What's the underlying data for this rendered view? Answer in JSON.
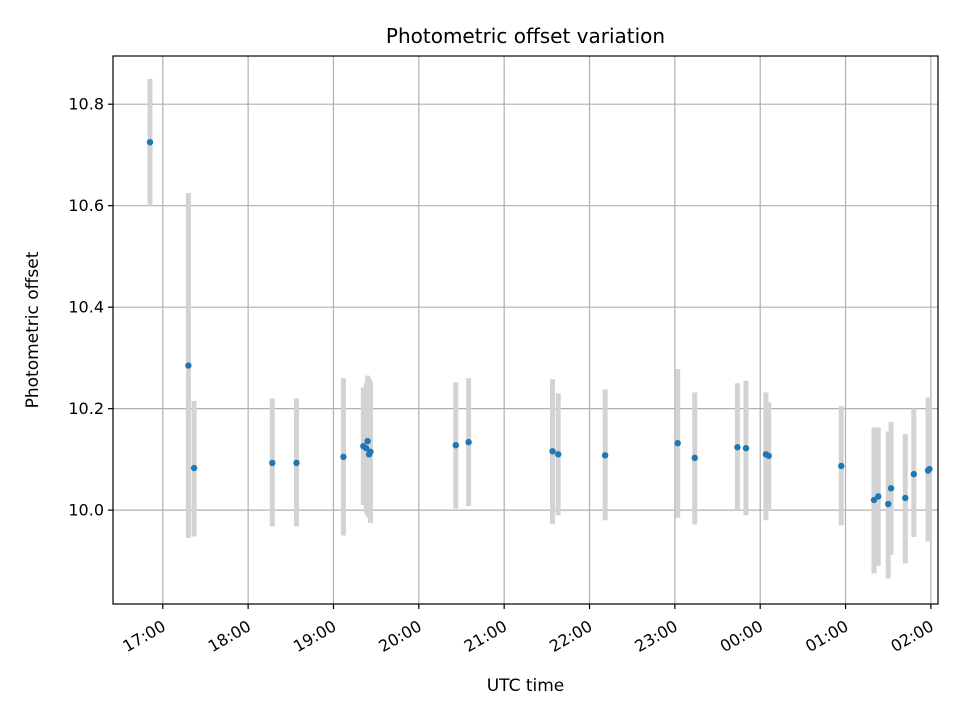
{
  "chart_data": {
    "type": "scatter",
    "title": "Photometric offset variation",
    "xlabel": "UTC time",
    "ylabel": "Photometric offset",
    "xlim": [
      "16:25",
      "02:05"
    ],
    "ylim": [
      9.815,
      10.895
    ],
    "grid": true,
    "colors": {
      "point": "#1f77b4",
      "errorbar": "#d3d3d3",
      "grid": "#b0b0b0"
    },
    "x_ticks": [
      "17:00",
      "18:00",
      "19:00",
      "20:00",
      "21:00",
      "22:00",
      "23:00",
      "00:00",
      "01:00",
      "02:00"
    ],
    "y_ticks": [
      "10.0",
      "10.2",
      "10.4",
      "10.6",
      "10.8"
    ],
    "points": [
      {
        "t": "16:51",
        "y": 10.725,
        "lo": 10.6,
        "hi": 10.85
      },
      {
        "t": "17:18",
        "y": 10.285,
        "lo": 9.945,
        "hi": 10.625
      },
      {
        "t": "17:22",
        "y": 10.083,
        "lo": 9.948,
        "hi": 10.215
      },
      {
        "t": "18:17",
        "y": 10.093,
        "lo": 9.968,
        "hi": 10.22
      },
      {
        "t": "18:34",
        "y": 10.093,
        "lo": 9.968,
        "hi": 10.22
      },
      {
        "t": "19:07",
        "y": 10.105,
        "lo": 9.95,
        "hi": 10.26
      },
      {
        "t": "19:21",
        "y": 10.126,
        "lo": 10.01,
        "hi": 10.242
      },
      {
        "t": "19:23",
        "y": 10.122,
        "lo": 9.995,
        "hi": 10.25
      },
      {
        "t": "19:24",
        "y": 10.136,
        "lo": 9.99,
        "hi": 10.265
      },
      {
        "t": "19:25",
        "y": 10.11,
        "lo": 9.985,
        "hi": 10.26
      },
      {
        "t": "19:26",
        "y": 10.115,
        "lo": 9.975,
        "hi": 10.255
      },
      {
        "t": "20:26",
        "y": 10.128,
        "lo": 10.003,
        "hi": 10.252
      },
      {
        "t": "20:35",
        "y": 10.134,
        "lo": 10.008,
        "hi": 10.26
      },
      {
        "t": "21:34",
        "y": 10.116,
        "lo": 9.973,
        "hi": 10.258
      },
      {
        "t": "21:38",
        "y": 10.11,
        "lo": 9.99,
        "hi": 10.23
      },
      {
        "t": "22:11",
        "y": 10.108,
        "lo": 9.98,
        "hi": 10.238
      },
      {
        "t": "23:02",
        "y": 10.132,
        "lo": 9.985,
        "hi": 10.278
      },
      {
        "t": "23:14",
        "y": 10.103,
        "lo": 9.972,
        "hi": 10.232
      },
      {
        "t": "23:44",
        "y": 10.124,
        "lo": 10.0,
        "hi": 10.25
      },
      {
        "t": "23:50",
        "y": 10.122,
        "lo": 9.99,
        "hi": 10.255
      },
      {
        "t": "00:04",
        "y": 10.11,
        "lo": 9.98,
        "hi": 10.232
      },
      {
        "t": "00:06",
        "y": 10.107,
        "lo": 10.0,
        "hi": 10.212
      },
      {
        "t": "00:57",
        "y": 10.087,
        "lo": 9.97,
        "hi": 10.205
      },
      {
        "t": "01:20",
        "y": 10.02,
        "lo": 9.875,
        "hi": 10.163
      },
      {
        "t": "01:23",
        "y": 10.027,
        "lo": 9.89,
        "hi": 10.163
      },
      {
        "t": "01:30",
        "y": 10.012,
        "lo": 9.865,
        "hi": 10.155
      },
      {
        "t": "01:32",
        "y": 10.043,
        "lo": 9.912,
        "hi": 10.174
      },
      {
        "t": "01:42",
        "y": 10.024,
        "lo": 9.895,
        "hi": 10.15
      },
      {
        "t": "01:48",
        "y": 10.071,
        "lo": 9.947,
        "hi": 10.2
      },
      {
        "t": "01:58",
        "y": 10.078,
        "lo": 9.938,
        "hi": 10.222
      },
      {
        "t": "01:59",
        "y": 10.081,
        "lo": 9.938,
        "hi": 10.222
      }
    ]
  }
}
